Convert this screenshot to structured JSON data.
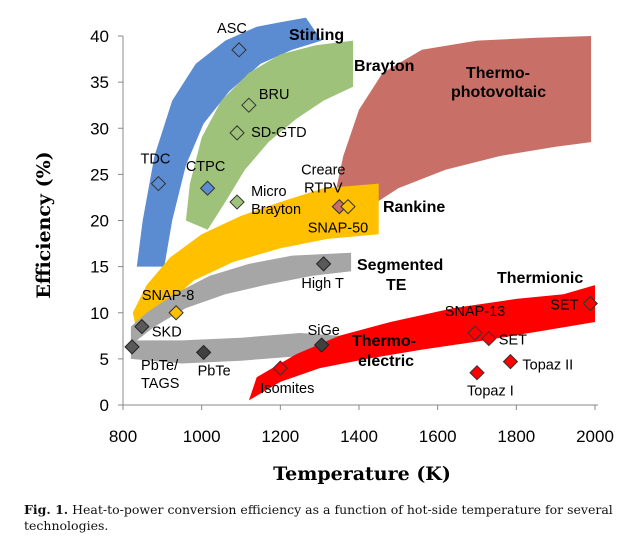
{
  "chart_data": {
    "type": "scatter",
    "xlabel": "Temperature (K)",
    "ylabel": "Efficiency (%)",
    "xlim": [
      800,
      2000
    ],
    "ylim": [
      0,
      40
    ],
    "xticks": [
      "800",
      "1000",
      "1200",
      "1400",
      "1600",
      "1800",
      "2000"
    ],
    "yticks": [
      "0",
      "5",
      "10",
      "15",
      "20",
      "25",
      "30",
      "35",
      "40"
    ],
    "grid": false,
    "bands": [
      {
        "name": "Stirling",
        "color": "#5B8BD0",
        "lower": [
          [
            905,
            15
          ],
          [
            925,
            20
          ],
          [
            960,
            26
          ],
          [
            1005,
            30.5
          ],
          [
            1070,
            34
          ],
          [
            1150,
            37
          ],
          [
            1230,
            38.5
          ],
          [
            1305,
            39.5
          ]
        ],
        "upper": [
          [
            835,
            15
          ],
          [
            850,
            20
          ],
          [
            880,
            27
          ],
          [
            925,
            33
          ],
          [
            985,
            37
          ],
          [
            1060,
            39.5
          ],
          [
            1140,
            41
          ],
          [
            1200,
            41.5
          ],
          [
            1265,
            42
          ]
        ]
      },
      {
        "name": "Brayton",
        "color": "#9FC27A",
        "lower": [
          [
            1015,
            19
          ],
          [
            1060,
            22
          ],
          [
            1110,
            25.5
          ],
          [
            1170,
            28.5
          ],
          [
            1240,
            31
          ],
          [
            1310,
            33
          ],
          [
            1385,
            34.5
          ]
        ],
        "upper": [
          [
            960,
            20
          ],
          [
            970,
            24
          ],
          [
            1000,
            29
          ],
          [
            1050,
            33
          ],
          [
            1120,
            36
          ],
          [
            1200,
            38
          ],
          [
            1290,
            39
          ],
          [
            1385,
            39.5
          ]
        ]
      },
      {
        "name": "Thermo-photovoltaic",
        "color": "#C87068",
        "lower": [
          [
            1350,
            19
          ],
          [
            1410,
            21
          ],
          [
            1500,
            23.5
          ],
          [
            1620,
            25.5
          ],
          [
            1760,
            27
          ],
          [
            1900,
            28
          ],
          [
            1990,
            28.5
          ]
        ],
        "upper": [
          [
            1330,
            21
          ],
          [
            1360,
            27
          ],
          [
            1400,
            32
          ],
          [
            1460,
            36
          ],
          [
            1560,
            38.5
          ],
          [
            1700,
            39.5
          ],
          [
            1850,
            39.8
          ],
          [
            1990,
            40
          ]
        ]
      },
      {
        "name": "Rankine",
        "color": "#FFC000",
        "lower": [
          [
            835,
            8
          ],
          [
            900,
            10.5
          ],
          [
            980,
            13.5
          ],
          [
            1080,
            15.5
          ],
          [
            1200,
            17
          ],
          [
            1320,
            18
          ],
          [
            1450,
            18.5
          ]
        ],
        "upper": [
          [
            825,
            10
          ],
          [
            860,
            13
          ],
          [
            920,
            16
          ],
          [
            1000,
            18.5
          ],
          [
            1100,
            20.5
          ],
          [
            1200,
            22
          ],
          [
            1310,
            23.5
          ],
          [
            1450,
            24
          ]
        ]
      },
      {
        "name": "Segmented TE",
        "color": "#A6A6A6",
        "lower": [
          [
            820,
            6.5
          ],
          [
            880,
            8.5
          ],
          [
            960,
            10.5
          ],
          [
            1060,
            12
          ],
          [
            1160,
            13
          ],
          [
            1280,
            14
          ],
          [
            1380,
            14.5
          ]
        ],
        "upper": [
          [
            820,
            8.5
          ],
          [
            860,
            10
          ],
          [
            930,
            12
          ],
          [
            1020,
            14
          ],
          [
            1120,
            15.3
          ],
          [
            1230,
            16.2
          ],
          [
            1380,
            16.5
          ]
        ]
      },
      {
        "name": "Thermoelectric-gray",
        "color": "#A6A6A6",
        "lower": [
          [
            820,
            5
          ],
          [
            950,
            4.5
          ],
          [
            1100,
            4.8
          ],
          [
            1250,
            5.3
          ],
          [
            1350,
            5.5
          ]
        ],
        "upper": [
          [
            820,
            7
          ],
          [
            950,
            7
          ],
          [
            1100,
            7.3
          ],
          [
            1250,
            7.8
          ],
          [
            1350,
            7.5
          ]
        ]
      },
      {
        "name": "Thermionic",
        "color": "#FF0000",
        "lower": [
          [
            1120,
            0.5
          ],
          [
            1200,
            2.5
          ],
          [
            1300,
            4
          ],
          [
            1420,
            5
          ],
          [
            1560,
            6
          ],
          [
            1720,
            7
          ],
          [
            1860,
            8
          ],
          [
            2000,
            9
          ]
        ],
        "upper": [
          [
            1140,
            3
          ],
          [
            1240,
            5.5
          ],
          [
            1350,
            7.5
          ],
          [
            1480,
            9
          ],
          [
            1640,
            10.5
          ],
          [
            1800,
            11.5
          ],
          [
            1920,
            12
          ],
          [
            2000,
            13
          ]
        ]
      }
    ],
    "points": [
      {
        "label": "ASC",
        "x": 1095,
        "y": 38.5,
        "color": "#5B8BD0"
      },
      {
        "label": "BRU",
        "x": 1120,
        "y": 32.5,
        "color": "#9FC27A"
      },
      {
        "label": "SD-GTD",
        "x": 1090,
        "y": 29.5,
        "color": "#9FC27A"
      },
      {
        "label": "TDC",
        "x": 890,
        "y": 24,
        "color": "#5B8BD0"
      },
      {
        "label": "CTPC",
        "x": 1015,
        "y": 23.5,
        "color": "#5B8BD0"
      },
      {
        "label": "Micro Brayton",
        "x": 1090,
        "y": 22,
        "color": "#9FC27A"
      },
      {
        "label": "Creare RTPV",
        "x": 1350,
        "y": 21.5,
        "color": "#C87068"
      },
      {
        "label": "SNAP-50",
        "x": 1372,
        "y": 21.5,
        "color": "#FFC000"
      },
      {
        "label": "High T",
        "x": 1310,
        "y": 15.3,
        "color": "#595959"
      },
      {
        "label": "SNAP-8",
        "x": 935,
        "y": 10,
        "color": "#FFC000"
      },
      {
        "label": "SKD",
        "x": 848,
        "y": 8.5,
        "color": "#595959"
      },
      {
        "label": "PbTe/ TAGS",
        "x": 823,
        "y": 6.3,
        "color": "#595959"
      },
      {
        "label": "PbTe",
        "x": 1005,
        "y": 5.7,
        "color": "#404040"
      },
      {
        "label": "SiGe",
        "x": 1305,
        "y": 6.5,
        "color": "#404040"
      },
      {
        "label": "Isomites",
        "x": 1200,
        "y": 4,
        "color": "#FF0000"
      },
      {
        "label": "SNAP-13",
        "x": 1695,
        "y": 7.8,
        "color": "#FF0000"
      },
      {
        "label": "SET",
        "x": 1730,
        "y": 7.2,
        "color": "#FF0000"
      },
      {
        "label": "Topaz II",
        "x": 1785,
        "y": 4.7,
        "color": "#FF0000"
      },
      {
        "label": "Topaz I",
        "x": 1700,
        "y": 3.5,
        "color": "#FF0000"
      },
      {
        "label": "SET",
        "x": 1988,
        "y": 11,
        "color": "#FF0000"
      }
    ],
    "band_labels": [
      "Stirling",
      "Brayton",
      "Thermo-",
      "photovoltaic",
      "Rankine",
      "Segmented",
      "TE",
      "Thermionic",
      "Thermo-",
      "electric"
    ]
  },
  "caption": {
    "prefix": "Fig. 1.",
    "text": " Heat-to-power conversion efficiency as a function of hot-side temperature for several technologies."
  }
}
